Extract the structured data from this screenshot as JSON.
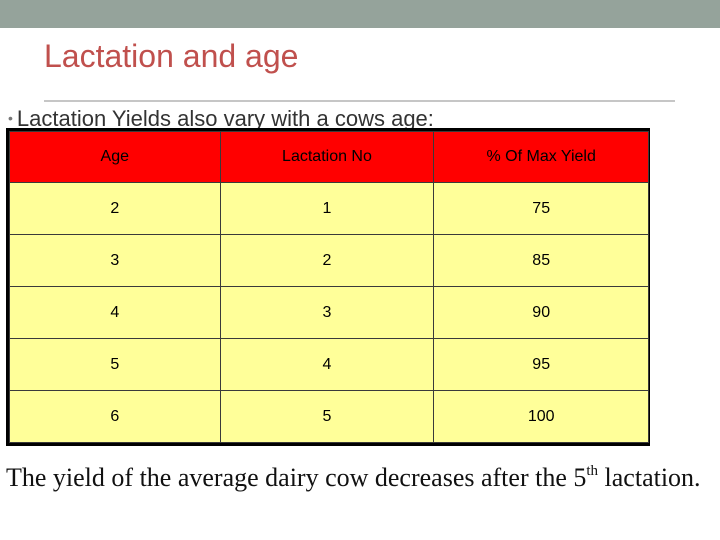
{
  "slide": {
    "title": "Lactation and age",
    "bullet": "Lactation Yields also vary with a cows age:"
  },
  "table": {
    "headers": [
      "Age",
      "Lactation No",
      "% Of Max Yield"
    ],
    "rows": [
      [
        "2",
        "1",
        "75"
      ],
      [
        "3",
        "2",
        "85"
      ],
      [
        "4",
        "3",
        "90"
      ],
      [
        "5",
        "4",
        "95"
      ],
      [
        "6",
        "5",
        "100"
      ]
    ],
    "header_color": "#ff0000",
    "cell_color": "#ffff99"
  },
  "caption": {
    "before_sup": "The yield of the average dairy cow decreases after the 5",
    "sup": "th",
    "after_sup": " lactation."
  }
}
